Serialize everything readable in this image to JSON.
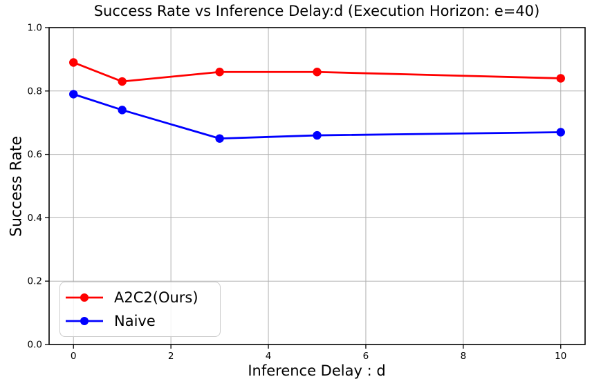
{
  "figure": {
    "background_color": "#ffffff"
  },
  "chart_data": {
    "type": "line",
    "title": "Success Rate vs Inference Delay:d (Execution Horizon: e=40)",
    "xlabel": "Inference Delay : d",
    "ylabel": "Success Rate",
    "x": [
      0,
      1,
      3,
      5,
      10
    ],
    "series": [
      {
        "name": "A2C2(Ours)",
        "color": "#ff0000",
        "values": [
          0.89,
          0.83,
          0.86,
          0.86,
          0.84
        ]
      },
      {
        "name": "Naive",
        "color": "#0000ff",
        "values": [
          0.79,
          0.74,
          0.65,
          0.66,
          0.67
        ]
      }
    ],
    "xlim": [
      -0.5,
      10.5
    ],
    "ylim": [
      0.0,
      1.0
    ],
    "xticks": [
      0,
      2,
      4,
      6,
      8,
      10
    ],
    "xtick_labels": [
      "0",
      "2",
      "4",
      "6",
      "8",
      "10"
    ],
    "yticks": [
      0.0,
      0.2,
      0.4,
      0.6,
      0.8,
      1.0
    ],
    "ytick_labels": [
      "0.0",
      "0.2",
      "0.4",
      "0.6",
      "0.8",
      "1.0"
    ],
    "grid": true,
    "grid_color": "#b0b0b0",
    "axes_edge_color": "#000000",
    "legend_position": "lower left",
    "legend": [
      "A2C2(Ours)",
      "Naive"
    ]
  }
}
